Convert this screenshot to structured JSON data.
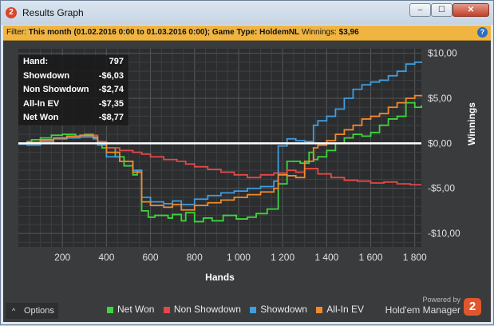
{
  "window": {
    "title": "Results Graph",
    "icon": "hm2-app-icon",
    "buttons": {
      "minimize": "–",
      "maximize": "☐",
      "close": "✕"
    }
  },
  "filter": {
    "label": "Filter:",
    "text": "This month (01.02.2016 0:00 to 01.03.2016 0:00); Game Type: HoldemNL",
    "winnings_label": "Winnings:",
    "winnings_value": "$3,96",
    "help": "?"
  },
  "stats": [
    {
      "label": "Hand:",
      "value": "797"
    },
    {
      "label": "Showdown",
      "value": "-$6,03"
    },
    {
      "label": "Non Showdown",
      "value": "-$2,74"
    },
    {
      "label": "All-In EV",
      "value": "-$7,35"
    },
    {
      "label": "Net Won",
      "value": "-$8,77"
    }
  ],
  "options": {
    "label": "Options",
    "caret": "^"
  },
  "brand": {
    "powered": "Powered by",
    "name": "Hold'em Manager",
    "logo": "2"
  },
  "chart_data": {
    "type": "line",
    "xlabel": "Hands",
    "ylabel": "Winnings",
    "xlim": [
      0,
      1830
    ],
    "ylim": [
      -11.5,
      10.5
    ],
    "x_ticks": [
      200,
      400,
      600,
      800,
      1000,
      1200,
      1400,
      1600,
      1800
    ],
    "x_tick_labels": [
      "200",
      "400",
      "600",
      "800",
      "1 000",
      "1 200",
      "1 400",
      "1 600",
      "1 800"
    ],
    "y_ticks": [
      10,
      5,
      0,
      -5,
      -10
    ],
    "y_tick_labels": [
      "$10,00",
      "$5,00",
      "$0,00",
      "-$5,00",
      "-$10,00"
    ],
    "grid": true,
    "legend_position": "bottom",
    "series": [
      {
        "name": "Net Won",
        "color": "#3dd63d",
        "x": [
          0,
          40,
          60,
          100,
          150,
          200,
          260,
          300,
          340,
          360,
          380,
          440,
          480,
          520,
          540,
          560,
          590,
          620,
          680,
          700,
          740,
          760,
          800,
          840,
          880,
          930,
          990,
          1040,
          1080,
          1130,
          1180,
          1220,
          1280,
          1320,
          1340,
          1360,
          1400,
          1440,
          1480,
          1520,
          1560,
          1600,
          1640,
          1680,
          1720,
          1760,
          1800,
          1830
        ],
        "y": [
          0.0,
          0.2,
          0.4,
          0.6,
          0.9,
          1.0,
          0.8,
          1.0,
          0.6,
          0.2,
          -0.5,
          -1.5,
          -2.5,
          -3.5,
          -3.0,
          -7.5,
          -8.2,
          -8.0,
          -8.3,
          -7.9,
          -8.6,
          -7.7,
          -8.7,
          -8.3,
          -8.6,
          -8.0,
          -8.4,
          -8.2,
          -7.8,
          -7.3,
          -4.5,
          -2.0,
          -2.2,
          -1.0,
          -1.8,
          -1.5,
          -0.8,
          0.0,
          0.6,
          1.0,
          0.8,
          1.2,
          2.0,
          2.7,
          3.0,
          4.5,
          4.0,
          4.2
        ]
      },
      {
        "name": "Non Showdown",
        "color": "#e34848",
        "x": [
          0,
          40,
          100,
          160,
          220,
          280,
          340,
          360,
          400,
          460,
          520,
          560,
          600,
          660,
          720,
          760,
          800,
          860,
          920,
          980,
          1040,
          1100,
          1160,
          1220,
          1260,
          1300,
          1360,
          1420,
          1480,
          1540,
          1600,
          1660,
          1720,
          1780,
          1830
        ],
        "y": [
          0.0,
          0.1,
          0.3,
          0.5,
          0.7,
          0.8,
          0.9,
          0.2,
          -0.5,
          -0.8,
          -1.0,
          -1.2,
          -1.5,
          -1.8,
          -2.0,
          -2.3,
          -2.6,
          -2.9,
          -3.2,
          -3.5,
          -3.8,
          -3.5,
          -3.3,
          -3.0,
          -3.2,
          -2.8,
          -3.4,
          -3.8,
          -4.1,
          -4.2,
          -4.4,
          -4.3,
          -4.5,
          -4.6,
          -4.6
        ]
      },
      {
        "name": "Showdown",
        "color": "#3f9de0",
        "x": [
          0,
          40,
          100,
          160,
          220,
          280,
          340,
          360,
          400,
          460,
          520,
          560,
          600,
          660,
          700,
          740,
          800,
          860,
          920,
          980,
          1040,
          1100,
          1160,
          1180,
          1220,
          1260,
          1300,
          1340,
          1360,
          1400,
          1440,
          1480,
          1520,
          1560,
          1600,
          1640,
          1680,
          1720,
          1760,
          1800,
          1830
        ],
        "y": [
          -0.1,
          -0.2,
          0.2,
          0.5,
          0.6,
          0.7,
          0.5,
          -0.2,
          -1.5,
          -2.0,
          -3.0,
          -6.0,
          -6.5,
          -6.7,
          -6.4,
          -6.8,
          -6.2,
          -5.8,
          -5.5,
          -5.3,
          -5.0,
          -4.8,
          -4.2,
          -0.3,
          0.5,
          0.3,
          0.2,
          2.0,
          2.5,
          3.0,
          3.8,
          5.0,
          6.0,
          6.5,
          6.8,
          7.0,
          7.5,
          8.0,
          8.8,
          9.0,
          8.9
        ]
      },
      {
        "name": "All-In EV",
        "color": "#f08a2c",
        "x": [
          0,
          40,
          100,
          160,
          220,
          280,
          340,
          360,
          400,
          460,
          520,
          560,
          600,
          660,
          700,
          740,
          800,
          860,
          920,
          980,
          1040,
          1100,
          1160,
          1180,
          1220,
          1260,
          1300,
          1340,
          1360,
          1400,
          1440,
          1480,
          1520,
          1560,
          1600,
          1640,
          1680,
          1720,
          1760,
          1800,
          1830
        ],
        "y": [
          0.0,
          0.1,
          0.4,
          0.6,
          0.8,
          0.9,
          0.7,
          0.0,
          -1.0,
          -2.0,
          -3.2,
          -6.5,
          -6.9,
          -7.1,
          -6.8,
          -7.4,
          -6.9,
          -6.6,
          -6.3,
          -6.0,
          -5.7,
          -5.4,
          -5.0,
          -3.5,
          -3.6,
          -3.8,
          -2.0,
          -0.5,
          -0.2,
          0.3,
          1.0,
          1.5,
          2.0,
          2.7,
          3.0,
          3.3,
          4.0,
          4.5,
          5.0,
          5.3,
          5.2
        ]
      }
    ]
  }
}
